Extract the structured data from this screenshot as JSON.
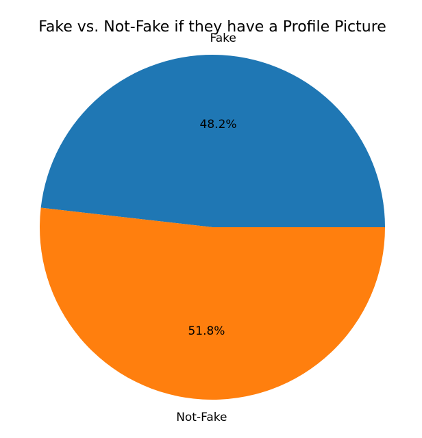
{
  "chart_data": {
    "type": "pie",
    "title": "Fake vs. Not-Fake if they have a Profile Picture",
    "labels": [
      "Fake",
      "Not-Fake"
    ],
    "values": [
      48.2,
      51.8
    ],
    "percent_labels": [
      "48.2%",
      "51.8%"
    ],
    "colors": [
      "#1f77b4",
      "#ff7f0e"
    ],
    "start_angle_deg": 0,
    "direction": "counterclockwise",
    "legend": "none"
  }
}
